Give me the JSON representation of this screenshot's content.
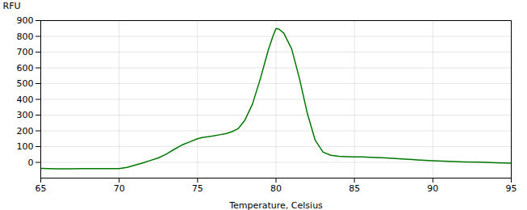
{
  "chart_data": {
    "type": "line",
    "xlabel": "Temperature, Celsius",
    "ylabel": "RFU",
    "x": [
      65.0,
      65.5,
      66.0,
      66.5,
      67.0,
      67.5,
      68.0,
      68.5,
      69.0,
      69.5,
      70.0,
      70.5,
      71.0,
      71.5,
      72.0,
      72.5,
      73.0,
      73.5,
      74.0,
      74.5,
      75.0,
      75.3,
      75.6,
      76.0,
      76.4,
      76.8,
      77.2,
      77.6,
      78.0,
      78.5,
      79.0,
      79.5,
      79.8,
      80.0,
      80.2,
      80.5,
      81.0,
      81.5,
      82.0,
      82.5,
      83.0,
      83.5,
      84.0,
      84.5,
      85.0,
      85.5,
      86.0,
      87.0,
      88.0,
      89.0,
      90.0,
      91.0,
      92.0,
      93.0,
      94.0,
      95.0
    ],
    "values": [
      -38,
      -40,
      -41,
      -41,
      -41,
      -40,
      -40,
      -40,
      -40,
      -40,
      -40,
      -32,
      -18,
      -4,
      12,
      28,
      52,
      82,
      110,
      130,
      150,
      158,
      162,
      168,
      175,
      182,
      195,
      215,
      265,
      370,
      530,
      710,
      800,
      850,
      845,
      820,
      720,
      530,
      310,
      140,
      65,
      45,
      38,
      36,
      35,
      34,
      32,
      28,
      22,
      16,
      10,
      6,
      3,
      1,
      -2,
      -5
    ],
    "color": "#007700",
    "xlim": [
      65,
      95
    ],
    "ylim": [
      -100,
      900
    ],
    "xticks": [
      65,
      70,
      75,
      80,
      85,
      90,
      95
    ],
    "yticks": [
      0,
      100,
      200,
      300,
      400,
      500,
      600,
      700,
      800,
      900
    ],
    "grid": true
  }
}
